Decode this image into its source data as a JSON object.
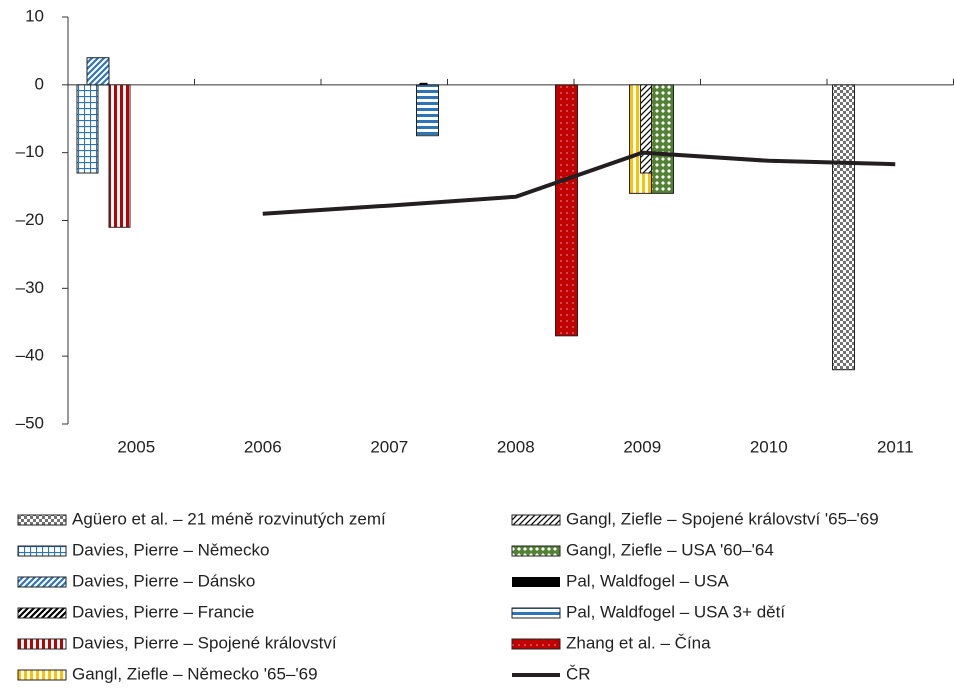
{
  "chart_data": {
    "type": "bar",
    "categories": [
      "2005",
      "2006",
      "2007",
      "2008",
      "2009",
      "2010",
      "2011"
    ],
    "ylim": [
      -50,
      10
    ],
    "yticks": [
      {
        "value": -50,
        "label": "–50"
      },
      {
        "value": -40,
        "label": "–40"
      },
      {
        "value": -30,
        "label": "–30"
      },
      {
        "value": -20,
        "label": "–20"
      },
      {
        "value": -10,
        "label": "–10"
      },
      0,
      10
    ],
    "series": [
      {
        "name": "Agüero et al. – 21 méně rozvinutých zemí",
        "color": "#707070",
        "values": [
          null,
          null,
          null,
          null,
          null,
          -42,
          null
        ]
      },
      {
        "name": "Davies, Pierre – Německo",
        "color": "#2e75b6",
        "values": [
          -13,
          null,
          null,
          null,
          null,
          null,
          null
        ]
      },
      {
        "name": "Davies, Pierre – Dánsko",
        "color": "#2e75b6",
        "values": [
          4,
          null,
          null,
          null,
          null,
          null,
          null
        ]
      },
      {
        "name": "Davies, Pierre – Francie",
        "color": "#000000",
        "values": [
          0,
          null,
          null,
          null,
          null,
          null,
          null
        ]
      },
      {
        "name": "Davies, Pierre – Spojené království",
        "color": "#c00000",
        "values": [
          -21,
          null,
          null,
          null,
          null,
          null,
          null
        ]
      },
      {
        "name": "Gangl, Ziefle – Německo '65–'69",
        "color": "#ffc000",
        "values": [
          null,
          null,
          null,
          null,
          -16,
          null,
          null
        ]
      },
      {
        "name": "Gangl, Ziefle – Spojené království '65–'69",
        "color": "#000000",
        "values": [
          null,
          null,
          null,
          null,
          -13,
          null,
          null
        ]
      },
      {
        "name": "Gangl, Ziefle – USA '60–'64",
        "color": "#548235",
        "values": [
          null,
          null,
          null,
          null,
          -16,
          null,
          null
        ]
      },
      {
        "name": "Pal, Waldfogel – USA",
        "color": "#000000",
        "values": [
          null,
          null,
          0.3,
          null,
          null,
          null,
          null
        ]
      },
      {
        "name": "Pal, Waldfogel – USA 3+ dětí",
        "color": "#2e75b6",
        "values": [
          null,
          null,
          -7.5,
          null,
          null,
          null,
          null
        ]
      },
      {
        "name": "Zhang et al. – Čína",
        "color": "#c00000",
        "values": [
          null,
          null,
          null,
          -37,
          null,
          null,
          null
        ]
      },
      {
        "name": "ČR",
        "color": "#231f20",
        "type": "line",
        "values": [
          null,
          -19,
          -17.8,
          -16.5,
          -10,
          -11.2,
          -11.7
        ]
      }
    ]
  }
}
